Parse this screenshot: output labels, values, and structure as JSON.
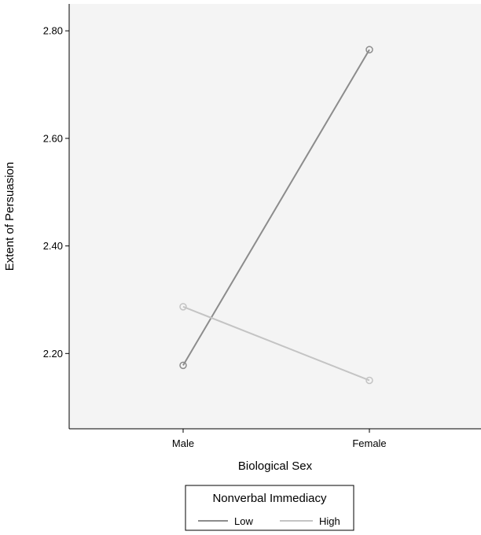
{
  "chart_data": {
    "type": "line",
    "title": "",
    "xlabel": "Biological Sex",
    "ylabel": "Extent of Persuasion",
    "categories": [
      "Male",
      "Female"
    ],
    "ylim": [
      2.06,
      2.85
    ],
    "yticks": [
      2.2,
      2.4,
      2.6,
      2.8
    ],
    "ytick_labels": [
      "2.20",
      "2.40",
      "2.60",
      "2.80"
    ],
    "grid": false,
    "legend": {
      "title": "Nonverbal Immediacy",
      "placement": "bottom-center"
    },
    "series": [
      {
        "name": "Low",
        "values": [
          2.178,
          2.765
        ],
        "color": "#8c8c8c"
      },
      {
        "name": "High",
        "values": [
          2.287,
          2.15
        ],
        "color": "#c4c4c4"
      }
    ],
    "plot_background": "#f4f4f4"
  }
}
